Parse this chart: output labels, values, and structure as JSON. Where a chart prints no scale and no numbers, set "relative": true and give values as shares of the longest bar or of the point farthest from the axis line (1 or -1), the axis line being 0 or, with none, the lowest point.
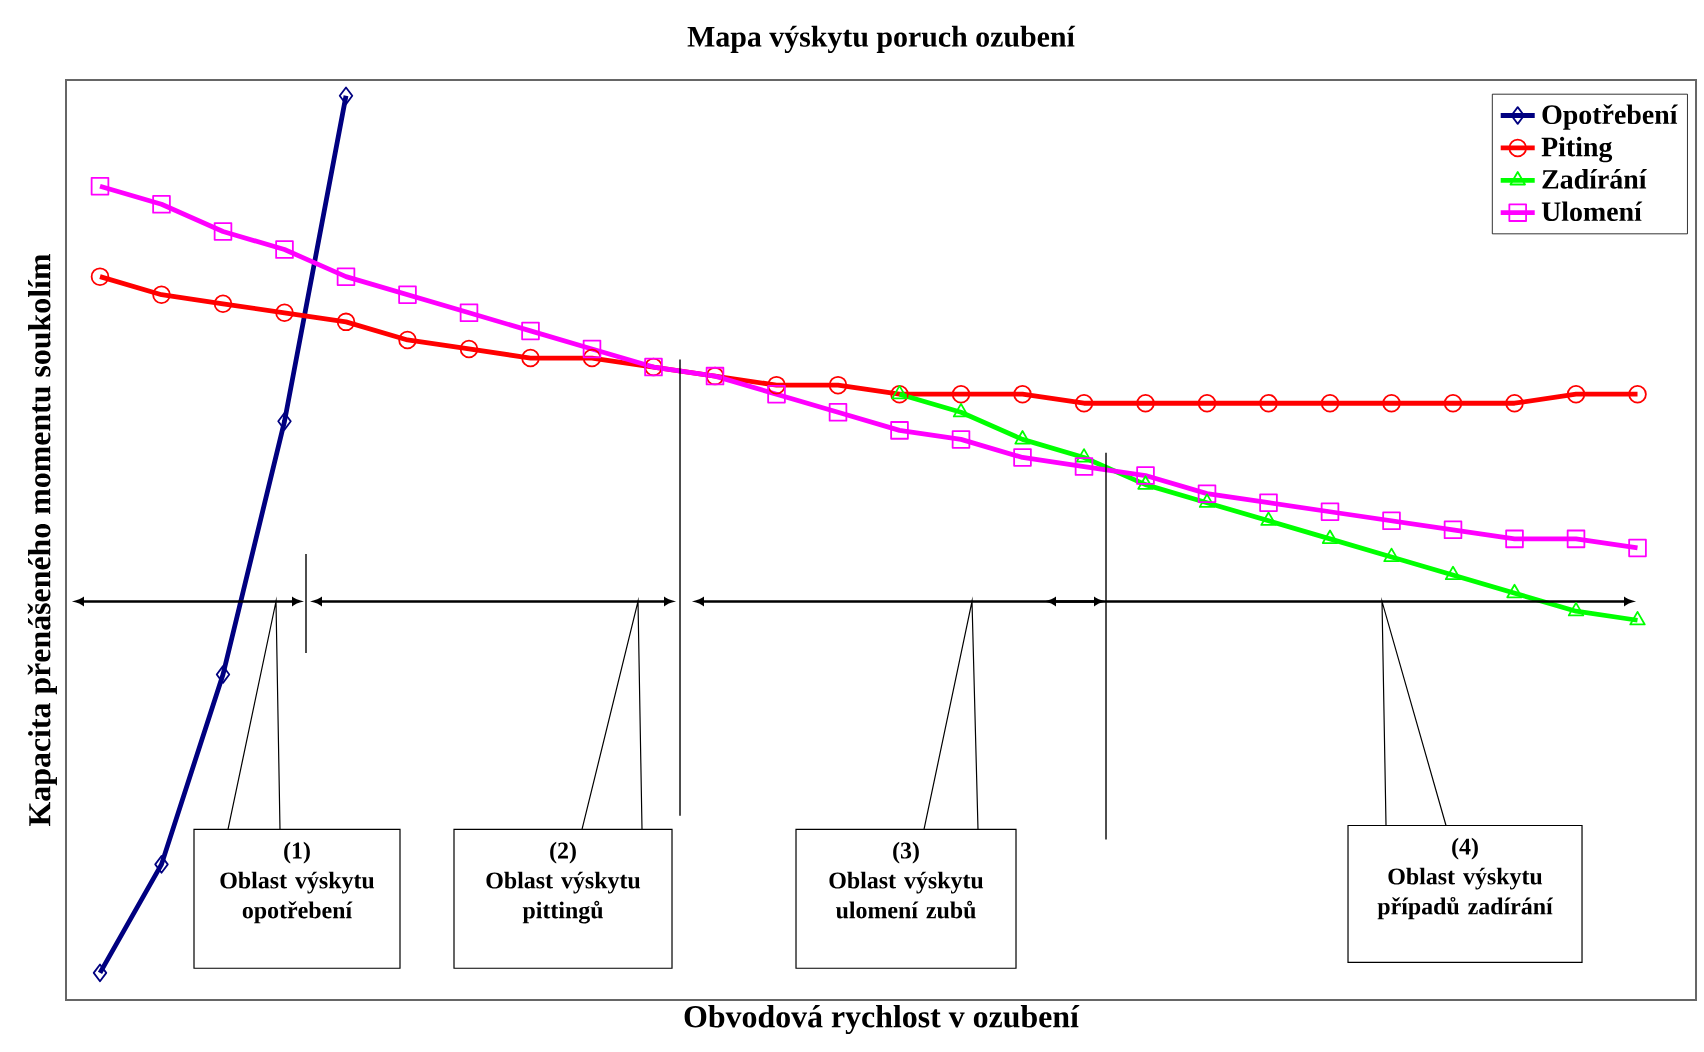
{
  "chart_data": {
    "type": "line",
    "relative": true,
    "title": "Mapa výskytu poruch ozubení",
    "xlabel": "Obvodová rychlost v ozubení",
    "ylabel": "Kapacita přenášeného momentu soukolím",
    "categories": [
      null,
      null,
      null,
      null,
      null,
      null,
      null,
      null,
      null,
      null,
      null,
      null,
      null,
      null,
      null,
      null,
      null,
      null,
      null,
      null,
      null,
      null,
      null,
      null,
      null,
      null
    ],
    "series": [
      {
        "name": "Opotřebení",
        "color": "#000080",
        "marker": "diamond",
        "values": [
          0.03,
          0.15,
          0.36,
          0.64,
          1.0,
          null,
          null,
          null,
          null,
          null,
          null,
          null,
          null,
          null,
          null,
          null,
          null,
          null,
          null,
          null,
          null,
          null,
          null,
          null,
          null,
          null
        ]
      },
      {
        "name": "Piting",
        "color": "#ff0000",
        "marker": "circle",
        "values": [
          0.8,
          0.78,
          0.77,
          0.76,
          0.75,
          0.73,
          0.72,
          0.71,
          0.71,
          0.7,
          0.69,
          0.68,
          0.68,
          0.67,
          0.67,
          0.67,
          0.66,
          0.66,
          0.66,
          0.66,
          0.66,
          0.66,
          0.66,
          0.66,
          0.67,
          0.67
        ]
      },
      {
        "name": "Zadírání",
        "color": "#00ff00",
        "marker": "triangle",
        "values": [
          null,
          null,
          null,
          null,
          null,
          null,
          null,
          null,
          null,
          null,
          null,
          null,
          null,
          0.67,
          0.65,
          0.62,
          0.6,
          0.57,
          0.55,
          0.53,
          0.51,
          0.49,
          0.47,
          0.45,
          0.43,
          0.42
        ]
      },
      {
        "name": "Ulomení",
        "color": "#ff00ff",
        "marker": "square",
        "values": [
          0.9,
          0.88,
          0.85,
          0.83,
          0.8,
          0.78,
          0.76,
          0.74,
          0.72,
          0.7,
          0.69,
          0.67,
          0.65,
          0.63,
          0.62,
          0.6,
          0.59,
          0.58,
          0.56,
          0.55,
          0.54,
          0.53,
          0.52,
          0.51,
          0.51,
          0.5
        ]
      }
    ],
    "legend": "top right",
    "line_style": "solid",
    "grid": false,
    "annotations": [
      "(1)",
      "Oblast výskytu opotřebení",
      "(2)",
      "Oblast výskytu pittingů",
      "(3)",
      "Oblast výskytu ulomení zubů",
      "(4)",
      "Oblast výskytu případů zadírání"
    ]
  }
}
